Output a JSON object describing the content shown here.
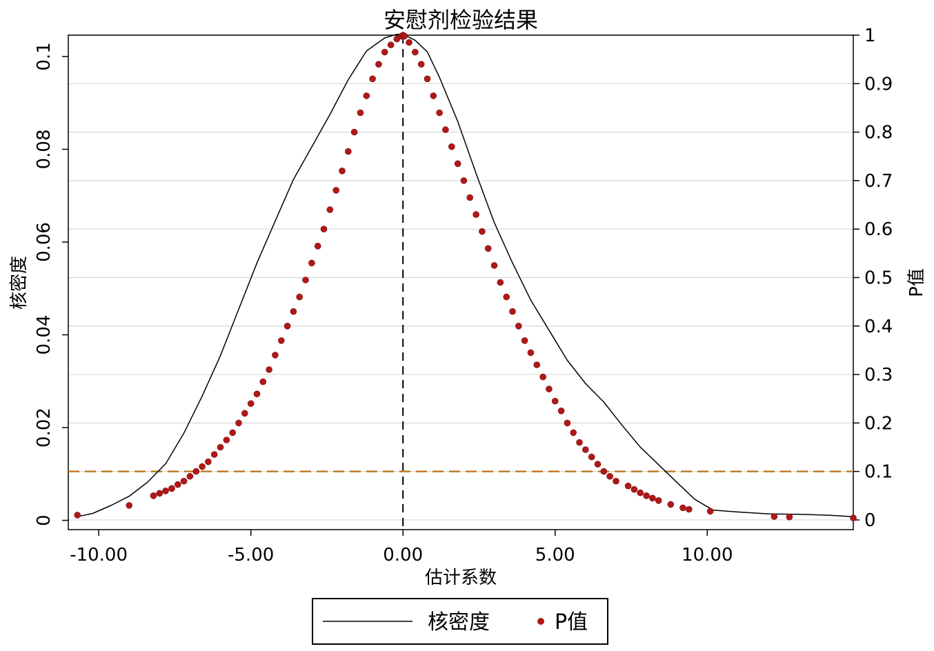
{
  "chart_data": {
    "type": "line",
    "title": "安慰剂检验结果",
    "xlabel": "估计系数",
    "ylabel_left": "核密度",
    "ylabel_right": "P值",
    "xlim": [
      -11.0,
      14.8
    ],
    "ylim_left": [
      -0.002,
      0.1046
    ],
    "ylim_right": [
      -0.02,
      1.0
    ],
    "x_ticks": [
      -10,
      -5,
      0,
      5,
      10
    ],
    "x_tick_labels": [
      "-10.00",
      "-5.00",
      "0.00",
      "5.00",
      "10.00"
    ],
    "y_left_ticks": [
      0,
      0.02,
      0.04,
      0.06,
      0.08,
      0.1
    ],
    "y_left_tick_labels": [
      "0",
      "0.02",
      "0.04",
      "0.06",
      "0.08",
      "0.1"
    ],
    "y_right_ticks": [
      0,
      0.1,
      0.2,
      0.3,
      0.4,
      0.5,
      0.6,
      0.7,
      0.8,
      0.9,
      1
    ],
    "y_right_tick_labels": [
      "0",
      "0.1",
      "0.2",
      "0.3",
      "0.4",
      "0.5",
      "0.6",
      "0.7",
      "0.8",
      "0.9",
      "1"
    ],
    "grid": true,
    "legend_position": "bottom",
    "reference_lines": {
      "vertical_x": 0,
      "horizontal_p": 0.1,
      "vertical_color": "#000000",
      "horizontal_color": "#c07c28"
    },
    "series": [
      {
        "name": "核密度",
        "axis": "left",
        "color": "#000000",
        "x": [
          -10.7,
          -10.2,
          -9.6,
          -9.0,
          -8.4,
          -7.8,
          -7.2,
          -6.6,
          -6.0,
          -5.4,
          -4.8,
          -4.2,
          -3.6,
          -3.0,
          -2.4,
          -1.8,
          -1.2,
          -0.6,
          -0.2,
          0.0,
          0.4,
          0.8,
          1.2,
          1.8,
          2.4,
          3.0,
          3.6,
          4.2,
          4.8,
          5.4,
          6.0,
          6.6,
          7.2,
          7.8,
          8.4,
          9.0,
          9.6,
          10.2,
          11.0,
          12.0,
          13.0,
          14.0,
          14.8
        ],
        "y": [
          0.0008,
          0.0015,
          0.0032,
          0.0052,
          0.0082,
          0.0122,
          0.0188,
          0.0268,
          0.0355,
          0.0455,
          0.0555,
          0.0645,
          0.0735,
          0.0805,
          0.0875,
          0.095,
          0.1012,
          0.104,
          0.1048,
          0.1048,
          0.1035,
          0.101,
          0.0955,
          0.086,
          0.0748,
          0.0642,
          0.0555,
          0.0475,
          0.041,
          0.0345,
          0.0295,
          0.0255,
          0.0205,
          0.0158,
          0.012,
          0.0082,
          0.0045,
          0.0022,
          0.0018,
          0.0014,
          0.0013,
          0.0011,
          0.0008
        ]
      },
      {
        "name": "P值",
        "axis": "right",
        "color": "#b01818",
        "type": "scatter",
        "x": [
          -10.7,
          -9.0,
          -8.2,
          -8.0,
          -7.8,
          -7.6,
          -7.4,
          -7.2,
          -7.0,
          -6.8,
          -6.6,
          -6.4,
          -6.2,
          -6.0,
          -5.8,
          -5.6,
          -5.4,
          -5.2,
          -5.0,
          -4.8,
          -4.6,
          -4.4,
          -4.2,
          -4.0,
          -3.8,
          -3.6,
          -3.4,
          -3.2,
          -3.0,
          -2.8,
          -2.6,
          -2.4,
          -2.2,
          -2.0,
          -1.8,
          -1.6,
          -1.4,
          -1.2,
          -1.0,
          -0.8,
          -0.6,
          -0.4,
          -0.2,
          -0.05,
          0.0,
          0.05,
          0.2,
          0.4,
          0.6,
          0.8,
          1.0,
          1.2,
          1.4,
          1.6,
          1.8,
          2.0,
          2.2,
          2.4,
          2.6,
          2.8,
          3.0,
          3.2,
          3.4,
          3.6,
          3.8,
          4.0,
          4.2,
          4.4,
          4.6,
          4.8,
          5.0,
          5.2,
          5.4,
          5.6,
          5.8,
          6.0,
          6.2,
          6.4,
          6.6,
          6.8,
          7.0,
          7.4,
          7.6,
          7.8,
          8.0,
          8.2,
          8.4,
          8.8,
          9.2,
          9.4,
          10.1,
          12.2,
          12.7,
          14.8
        ],
        "y": [
          0.01,
          0.03,
          0.05,
          0.055,
          0.06,
          0.065,
          0.073,
          0.08,
          0.09,
          0.1,
          0.11,
          0.12,
          0.135,
          0.15,
          0.165,
          0.18,
          0.2,
          0.22,
          0.24,
          0.26,
          0.285,
          0.31,
          0.34,
          0.37,
          0.4,
          0.43,
          0.46,
          0.495,
          0.53,
          0.565,
          0.6,
          0.64,
          0.68,
          0.72,
          0.76,
          0.8,
          0.84,
          0.875,
          0.91,
          0.94,
          0.965,
          0.98,
          0.992,
          0.998,
          1.0,
          0.998,
          0.985,
          0.965,
          0.94,
          0.91,
          0.875,
          0.84,
          0.805,
          0.77,
          0.735,
          0.7,
          0.665,
          0.63,
          0.595,
          0.56,
          0.525,
          0.49,
          0.46,
          0.43,
          0.4,
          0.37,
          0.345,
          0.32,
          0.295,
          0.27,
          0.245,
          0.225,
          0.2,
          0.18,
          0.16,
          0.145,
          0.13,
          0.115,
          0.1,
          0.09,
          0.08,
          0.07,
          0.063,
          0.056,
          0.05,
          0.045,
          0.04,
          0.032,
          0.025,
          0.022,
          0.018,
          0.007,
          0.006,
          0.004
        ]
      }
    ],
    "legend": [
      {
        "label": "核密度",
        "type": "line",
        "color": "#000000"
      },
      {
        "label": "P值",
        "type": "marker",
        "color": "#b01818"
      }
    ]
  }
}
